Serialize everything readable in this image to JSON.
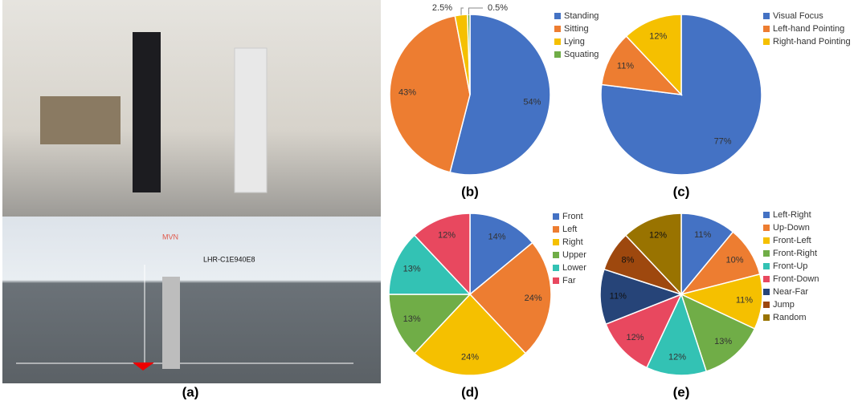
{
  "photo": {
    "caption": "(a)",
    "labels": [
      "MVN",
      "LHR-C1E940E8"
    ]
  },
  "chart_data": [
    {
      "type": "pie",
      "caption": "(b)",
      "categories": [
        "Standing",
        "Sitting",
        "Lying",
        "Squating"
      ],
      "values": [
        54,
        43,
        2.5,
        0.5
      ],
      "value_labels": [
        "54%",
        "43%",
        "2.5%",
        "0.5%"
      ],
      "colors": [
        "#4472c4",
        "#ed7d31",
        "#f5c000",
        "#70ad47"
      ]
    },
    {
      "type": "pie",
      "caption": "(c)",
      "categories": [
        "Visual Focus",
        "Left-hand Pointing",
        "Right-hand Pointing"
      ],
      "values": [
        77,
        11,
        12
      ],
      "value_labels": [
        "77%",
        "11%",
        "12%"
      ],
      "colors": [
        "#4472c4",
        "#ed7d31",
        "#f5c000"
      ]
    },
    {
      "type": "pie",
      "caption": "(d)",
      "categories": [
        "Front",
        "Left",
        "Right",
        "Upper",
        "Lower",
        "Far"
      ],
      "values": [
        14,
        24,
        24,
        13,
        13,
        12
      ],
      "value_labels": [
        "14%",
        "24%",
        "24%",
        "13%",
        "13%",
        "12%"
      ],
      "colors": [
        "#4472c4",
        "#ed7d31",
        "#f5c000",
        "#70ad47",
        "#33c2b4",
        "#e8485f"
      ]
    },
    {
      "type": "pie",
      "caption": "(e)",
      "categories": [
        "Left-Right",
        "Up-Down",
        "Front-Left",
        "Front-Right",
        "Front-Up",
        "Front-Down",
        "Near-Far",
        "Jump",
        "Random"
      ],
      "values": [
        11,
        10,
        11,
        13,
        12,
        12,
        11,
        8,
        12
      ],
      "value_labels": [
        "11%",
        "10%",
        "11%",
        "13%",
        "12%",
        "12%",
        "11%",
        "8%",
        "12%"
      ],
      "colors": [
        "#4472c4",
        "#ed7d31",
        "#f5c000",
        "#70ad47",
        "#33c2b4",
        "#e8485f",
        "#264478",
        "#9e480e",
        "#997300"
      ]
    }
  ]
}
